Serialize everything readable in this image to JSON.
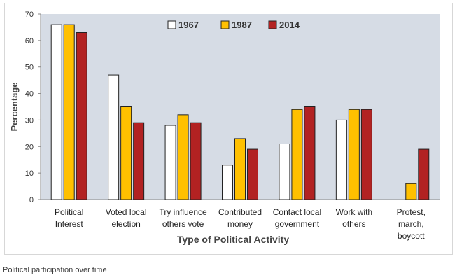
{
  "caption": "Political participation over time",
  "chart_data": {
    "type": "bar",
    "title": "",
    "xlabel": "Type of Political Activity",
    "ylabel": "Percentage",
    "ylim": [
      0,
      70
    ],
    "yticks": [
      0,
      10,
      20,
      30,
      40,
      50,
      60,
      70
    ],
    "grid": false,
    "legend_position": "top-center",
    "categories": [
      [
        "Political",
        "Interest"
      ],
      [
        "Voted local",
        "election"
      ],
      [
        "Try influence",
        "others vote"
      ],
      [
        "Contributed",
        "money"
      ],
      [
        "Contact local",
        "government"
      ],
      [
        "Work with",
        "others"
      ],
      [
        "Protest,",
        "march,",
        "boycott"
      ]
    ],
    "series": [
      {
        "name": "1967",
        "color": "#ffffff",
        "values": [
          66,
          47,
          28,
          13,
          21,
          30,
          null
        ]
      },
      {
        "name": "1987",
        "color": "#ffc000",
        "values": [
          66,
          35,
          32,
          23,
          34,
          34,
          6
        ]
      },
      {
        "name": "2014",
        "color": "#b22222",
        "values": [
          63,
          29,
          29,
          19,
          35,
          34,
          19
        ]
      }
    ],
    "plot_background": "#d6dce5"
  }
}
